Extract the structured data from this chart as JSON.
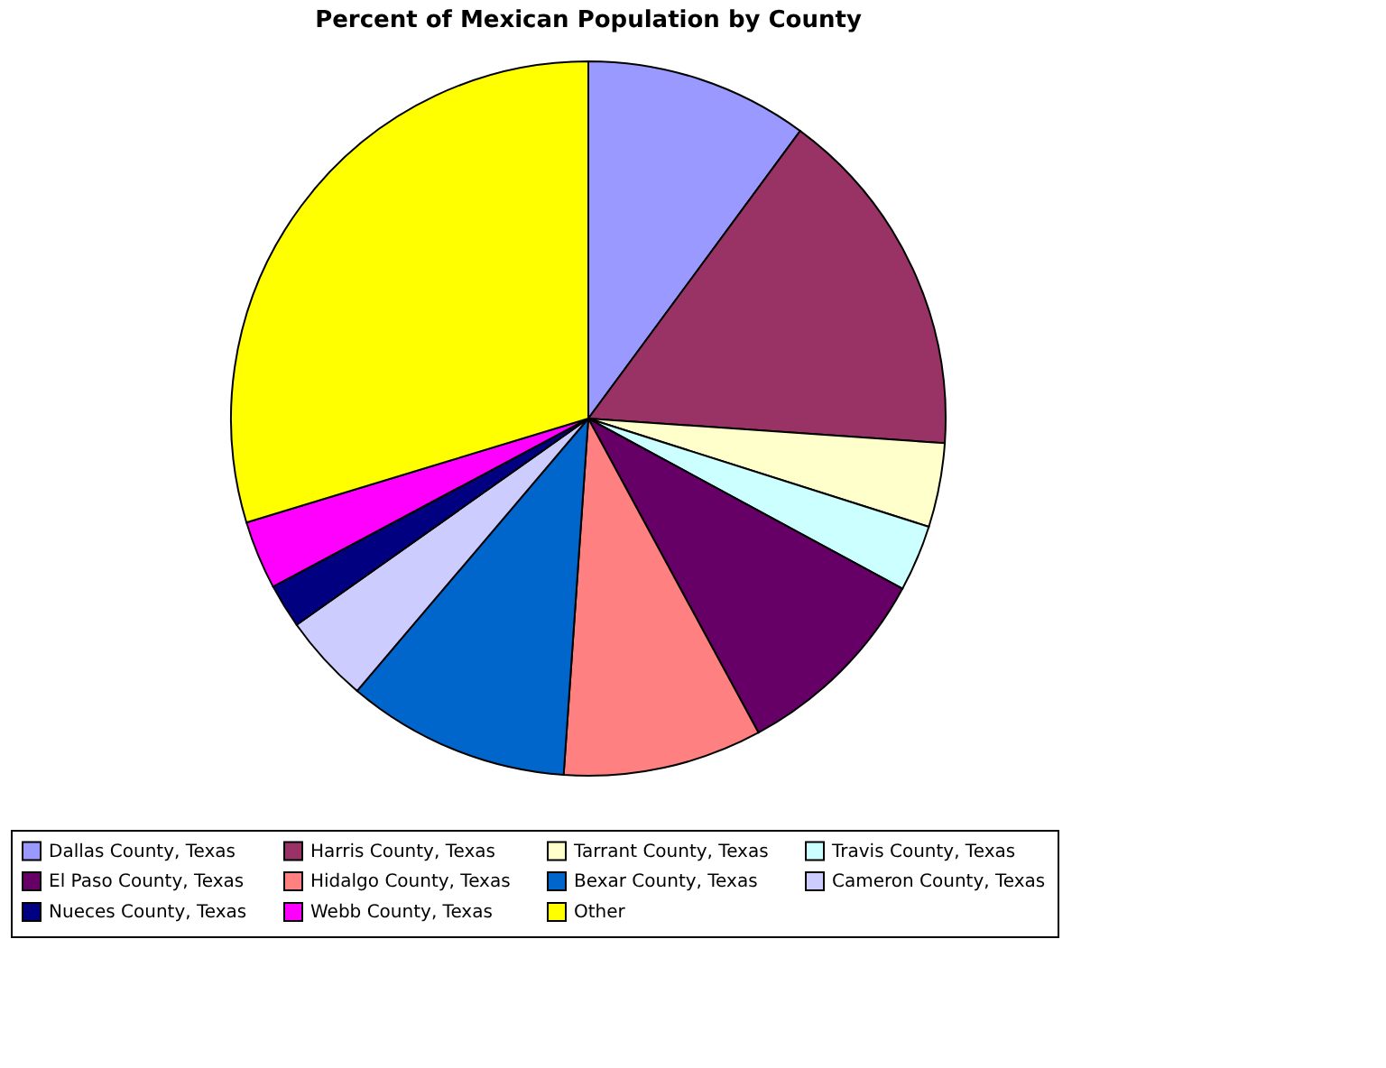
{
  "chart_data": {
    "type": "pie",
    "title": "Percent of Mexican Population by County",
    "categories": [
      "Dallas County, Texas",
      "Harris County, Texas",
      "Tarrant County, Texas",
      "Travis County, Texas",
      "El Paso County, Texas",
      "Hidalgo County, Texas",
      "Bexar County, Texas",
      "Cameron County, Texas",
      "Nueces County, Texas",
      "Webb County, Texas",
      "Other"
    ],
    "values": [
      10.1,
      16,
      3.8,
      3,
      9.2,
      9,
      10.1,
      4,
      2,
      3.1,
      29.7
    ],
    "colors": [
      "#9999ff",
      "#993366",
      "#ffffcc",
      "#ccffff",
      "#660066",
      "#ff8080",
      "#0066cc",
      "#ccccff",
      "#000080",
      "#ff00ff",
      "#ffff00"
    ],
    "legend": "bottom"
  }
}
